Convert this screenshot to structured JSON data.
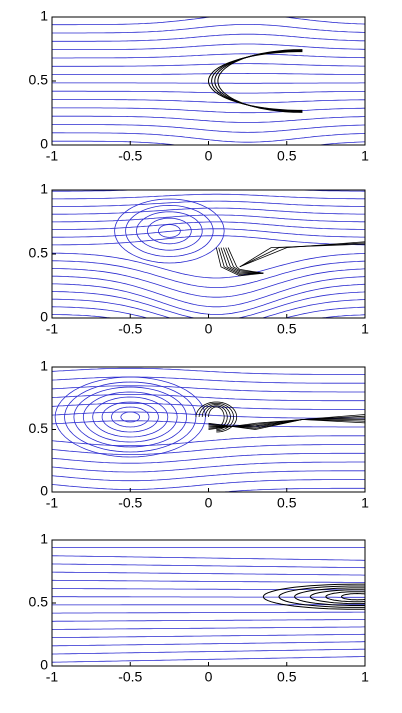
{
  "chart_data": [
    {
      "type": "streamplot",
      "xlim": [
        -1,
        1
      ],
      "ylim": [
        0,
        1
      ],
      "xticks": [
        -1,
        -0.5,
        0,
        0.5,
        1
      ],
      "yticks": [
        0,
        0.5,
        1
      ],
      "stream_color": "#2b2bd0",
      "body_color": "#000000"
    },
    {
      "type": "streamplot",
      "xlim": [
        -1,
        1
      ],
      "ylim": [
        0,
        1
      ],
      "xticks": [
        -1,
        -0.5,
        0,
        0.5,
        1
      ],
      "yticks": [
        0,
        0.5,
        1
      ],
      "stream_color": "#2b2bd0",
      "body_color": "#000000"
    },
    {
      "type": "streamplot",
      "xlim": [
        -1,
        1
      ],
      "ylim": [
        0,
        1
      ],
      "xticks": [
        -1,
        -0.5,
        0,
        0.5,
        1
      ],
      "yticks": [
        0,
        0.5,
        1
      ],
      "stream_color": "#2b2bd0",
      "body_color": "#000000"
    },
    {
      "type": "streamplot",
      "xlim": [
        -1,
        1
      ],
      "ylim": [
        0,
        1
      ],
      "xticks": [
        -1,
        -0.5,
        0,
        0.5,
        1
      ],
      "yticks": [
        0,
        0.5,
        1
      ],
      "stream_color": "#2b2bd0",
      "body_color": "#000000"
    }
  ]
}
